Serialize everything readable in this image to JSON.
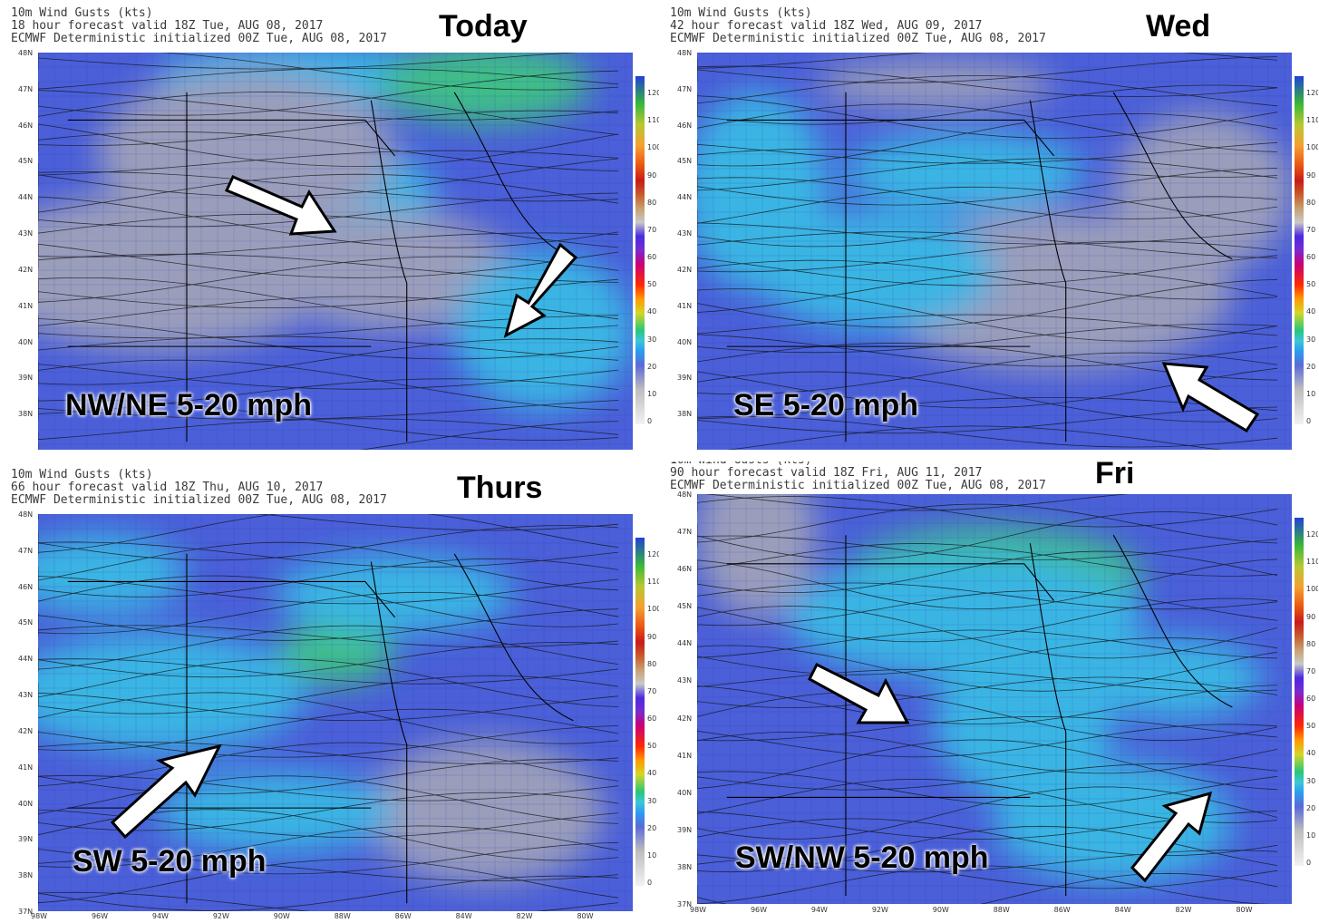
{
  "common": {
    "product": "10m Wind Gusts (kts)",
    "model": "ECMWF Deterministic initialized 00Z Tue, AUG 08, 2017",
    "colorbar_ticks": [
      "120",
      "110",
      "100",
      "90",
      "80",
      "70",
      "60",
      "50",
      "40",
      "30",
      "20",
      "10",
      "0"
    ],
    "lat_labels": [
      "48N",
      "47N",
      "46N",
      "45N",
      "44N",
      "43N",
      "42N",
      "41N",
      "40N",
      "39N",
      "38N",
      "37N"
    ],
    "lon_labels": [
      "98W",
      "96W",
      "94W",
      "92W",
      "90W",
      "88W",
      "86W",
      "84W",
      "82W",
      "80W"
    ]
  },
  "panels": [
    {
      "forecast": "18 hour forecast valid 18Z Tue, AUG 08, 2017",
      "day": "Today",
      "speed": "NW/NE 5-20 mph"
    },
    {
      "forecast": "42 hour forecast valid 18Z Wed, AUG 09, 2017",
      "day": "Wed",
      "speed": "SE 5-20 mph"
    },
    {
      "forecast": "66 hour forecast valid 18Z Thu, AUG 10, 2017",
      "day": "Thurs",
      "speed": "SW 5-20 mph"
    },
    {
      "forecast": "90 hour forecast valid 18Z Fri, AUG 11, 2017",
      "day": "Fri",
      "speed": "SW/NW 5-20 mph"
    }
  ],
  "colors": {
    "field_base": "#4a5fd8",
    "field_cyan": "#39c4e6",
    "field_green": "#3ccf7a",
    "field_gray": "#a9a9b6",
    "streamline": "#111111",
    "arrow_fill": "#ffffff"
  }
}
